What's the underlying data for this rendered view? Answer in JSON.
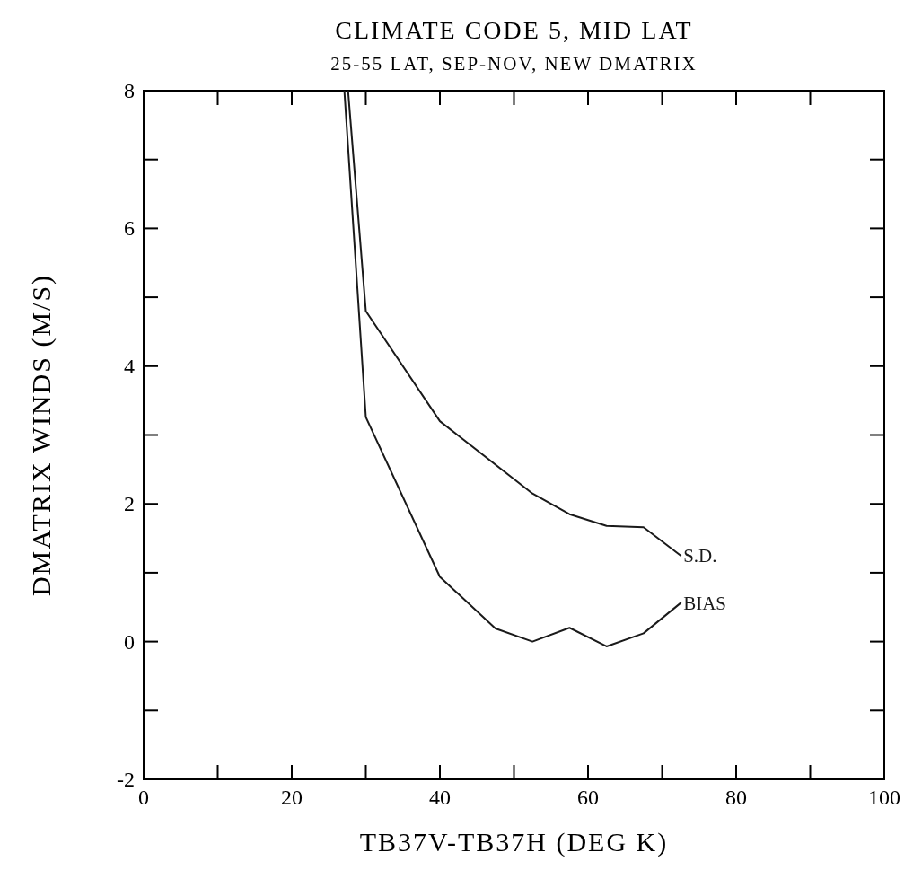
{
  "chart_data": {
    "type": "line",
    "title": "CLIMATE CODE 5, MID LAT",
    "subtitle": "25-55 LAT, SEP-NOV, NEW DMATRIX",
    "xlabel": "TB37V-TB37H (DEG K)",
    "ylabel": "DMATRIX WINDS (M/S)",
    "xlim": [
      0,
      100
    ],
    "ylim": [
      -2,
      8
    ],
    "xticks": [
      0,
      {
        "value": 10,
        "label": null
      },
      20,
      {
        "value": 30,
        "label": null
      },
      40,
      {
        "value": 50,
        "label": null
      },
      60,
      {
        "value": 70,
        "label": null
      },
      80,
      {
        "value": 90,
        "label": null
      },
      100
    ],
    "yticks": [
      -2,
      {
        "value": -1,
        "label": null
      },
      0,
      {
        "value": 1,
        "label": null
      },
      2,
      {
        "value": 3,
        "label": null
      },
      4,
      {
        "value": 5,
        "label": null
      },
      6,
      {
        "value": 7,
        "label": null
      },
      8
    ],
    "grid": false,
    "marker": "none",
    "line_style": "solid",
    "series": [
      {
        "name": "S.D.",
        "color": "#1a1a1a",
        "x": [
          27.6,
          30,
          40,
          52.5,
          57.5,
          62.5,
          67.5,
          72.5
        ],
        "values": [
          8,
          4.8,
          3.2,
          2.15,
          1.85,
          1.68,
          1.66,
          1.25
        ]
      },
      {
        "name": "BIAS",
        "color": "#1a1a1a",
        "x": [
          27.1,
          30,
          40,
          47.5,
          52.5,
          57.5,
          62.5,
          67.5,
          72.5
        ],
        "values": [
          8,
          3.26,
          0.94,
          0.19,
          0,
          0.2,
          -0.07,
          0.12,
          0.56
        ]
      }
    ]
  }
}
